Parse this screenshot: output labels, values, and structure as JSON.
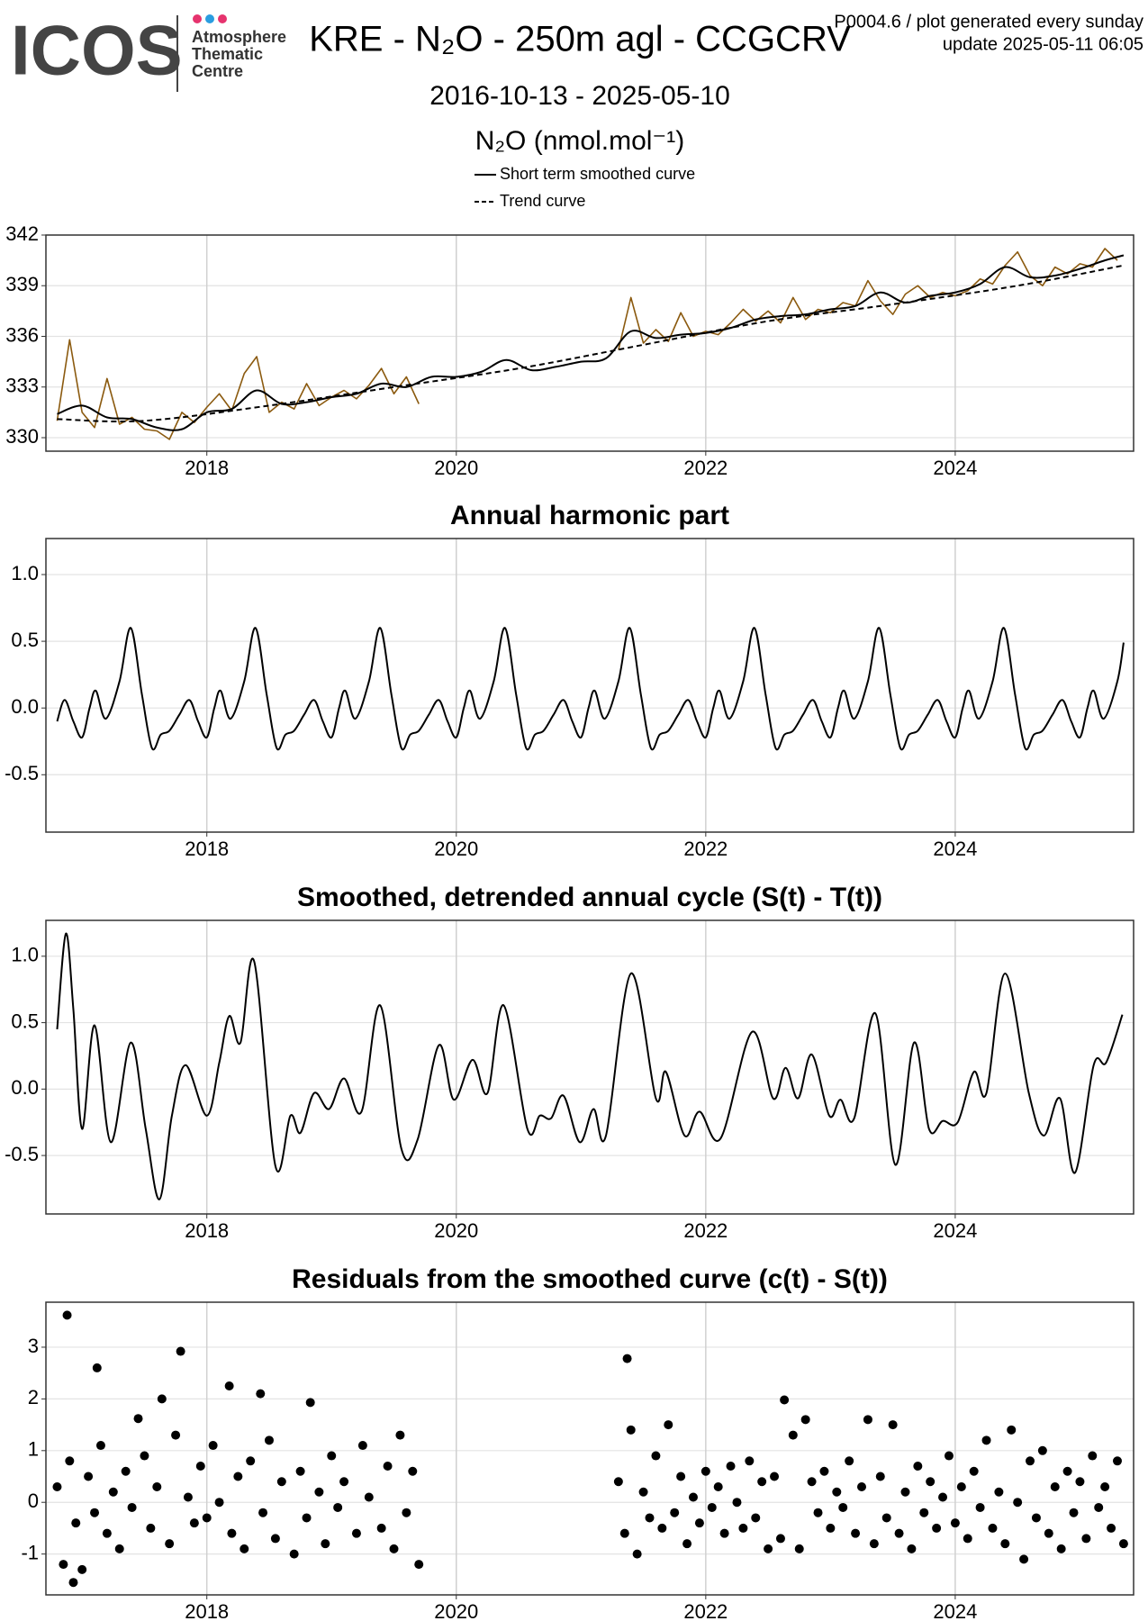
{
  "header": {
    "logo": "ICOS",
    "org_lines": [
      "Atmosphere",
      "Thematic",
      "Centre"
    ],
    "title": "KRE - N₂O - 250m agl - CCGCRV",
    "subtitle": "2016-10-13 - 2025-05-10",
    "notes": [
      "P0004.6 / plot generated every sunday",
      "update  2025-05-11 06:05"
    ]
  },
  "chart_data": [
    {
      "type": "line",
      "y_label": "N₂O (nmol.mol⁻¹)",
      "xlim": [
        2016.71,
        2025.43
      ],
      "xticks": [
        2018,
        2020,
        2022,
        2024
      ],
      "ylim": [
        329.2,
        342
      ],
      "yticks": [
        330,
        333,
        336,
        339,
        342
      ],
      "grid": true,
      "series": [
        {
          "color": "#8b5a0f",
          "style": "solid",
          "x": [
            2016.8,
            2016.9,
            2017.0,
            2017.1,
            2017.2,
            2017.3,
            2017.4,
            2017.5,
            2017.6,
            2017.7,
            2017.8,
            2017.9,
            2018.0,
            2018.1,
            2018.2,
            2018.3,
            2018.4,
            2018.5,
            2018.6,
            2018.7,
            2018.8,
            2018.9,
            2019.0,
            2019.1,
            2019.2,
            2019.3,
            2019.4,
            2019.5,
            2019.6,
            2019.7,
            2020.5,
            2021.3,
            2021.4,
            2021.5,
            2021.6,
            2021.7,
            2021.8,
            2021.9,
            2022.0,
            2022.1,
            2022.2,
            2022.3,
            2022.4,
            2022.5,
            2022.6,
            2022.7,
            2022.8,
            2022.9,
            2023.0,
            2023.1,
            2023.2,
            2023.3,
            2023.4,
            2023.5,
            2023.6,
            2023.7,
            2023.8,
            2023.9,
            2024.0,
            2024.1,
            2024.2,
            2024.3,
            2024.4,
            2024.5,
            2024.6,
            2024.7,
            2024.8,
            2024.9,
            2025.0,
            2025.1,
            2025.2,
            2025.3
          ],
          "values": [
            331.0,
            335.8,
            331.5,
            330.6,
            333.5,
            330.8,
            331.2,
            330.5,
            330.4,
            329.9,
            331.5,
            330.9,
            331.8,
            332.6,
            331.6,
            333.8,
            334.8,
            331.5,
            332.1,
            331.7,
            333.2,
            331.9,
            332.4,
            332.8,
            332.3,
            333.1,
            334.1,
            332.6,
            333.6,
            332.0,
            null,
            335.2,
            338.3,
            335.6,
            336.4,
            335.7,
            337.4,
            336.0,
            336.3,
            336.1,
            336.8,
            337.6,
            336.9,
            337.5,
            336.8,
            338.3,
            337.0,
            337.6,
            337.4,
            338.0,
            337.8,
            339.3,
            338.1,
            337.3,
            338.5,
            339.0,
            338.3,
            338.6,
            338.4,
            338.7,
            339.4,
            339.1,
            340.2,
            341.0,
            339.6,
            339.0,
            340.1,
            339.7,
            340.3,
            340.1,
            341.2,
            340.5
          ]
        },
        {
          "name": "Short term smoothed curve",
          "color": "#000000",
          "style": "solid",
          "x": [
            2016.8,
            2017.0,
            2017.2,
            2017.4,
            2017.6,
            2017.8,
            2018.0,
            2018.2,
            2018.4,
            2018.6,
            2018.8,
            2019.0,
            2019.2,
            2019.4,
            2019.6,
            2019.8,
            2020.0,
            2020.2,
            2020.4,
            2020.6,
            2020.8,
            2021.0,
            2021.2,
            2021.4,
            2021.6,
            2021.8,
            2022.0,
            2022.2,
            2022.4,
            2022.6,
            2022.8,
            2023.0,
            2023.2,
            2023.4,
            2023.6,
            2023.8,
            2024.0,
            2024.2,
            2024.4,
            2024.6,
            2024.8,
            2025.0,
            2025.2,
            2025.35
          ],
          "values": [
            331.4,
            331.9,
            331.2,
            331.1,
            330.6,
            330.5,
            331.5,
            331.7,
            332.8,
            332.0,
            332.1,
            332.4,
            332.6,
            333.2,
            333.0,
            333.6,
            333.6,
            333.9,
            334.6,
            334.0,
            334.2,
            334.5,
            334.7,
            336.3,
            335.9,
            336.1,
            336.2,
            336.5,
            337.0,
            337.2,
            337.3,
            337.6,
            337.8,
            338.6,
            338.0,
            338.4,
            338.6,
            339.1,
            340.1,
            339.5,
            339.6,
            340.0,
            340.5,
            340.8
          ]
        },
        {
          "name": "Trend curve",
          "color": "#000000",
          "style": "dashed",
          "x": [
            2016.8,
            2017.5,
            2018.5,
            2019.5,
            2020.5,
            2021.5,
            2022.5,
            2023.5,
            2024.5,
            2025.35
          ],
          "values": [
            331.1,
            331.0,
            331.9,
            333.0,
            334.1,
            335.5,
            336.9,
            337.9,
            339.0,
            340.2
          ]
        }
      ]
    },
    {
      "type": "line",
      "title": "Annual harmonic part",
      "xlim": [
        2016.71,
        2025.43
      ],
      "xticks": [
        2018,
        2020,
        2022,
        2024
      ],
      "ylim": [
        -0.93,
        1.27
      ],
      "yticks": [
        -0.5,
        {
          "value": 0,
          "label": "0.0"
        },
        0.5,
        {
          "value": 1,
          "label": "1.0"
        }
      ],
      "grid": true,
      "series": [
        {
          "color": "#000000",
          "style": "solid",
          "x": [
            2016.8,
            2016.86,
            2016.93,
            2017.0,
            2017.06,
            2017.11,
            2017.19,
            2017.3,
            2017.39,
            2017.48,
            2017.56,
            2017.63,
            2017.7,
            2017.78,
            2017.86,
            2017.93,
            2018.0,
            2018.06,
            2018.11,
            2018.19,
            2018.3,
            2018.39,
            2018.48,
            2018.56,
            2018.63,
            2018.7,
            2018.78,
            2018.86,
            2018.93,
            2019.0,
            2019.06,
            2019.11,
            2019.19,
            2019.3,
            2019.39,
            2019.48,
            2019.56,
            2019.63,
            2019.7,
            2019.78,
            2019.86,
            2019.93,
            2020.0,
            2020.06,
            2020.11,
            2020.19,
            2020.3,
            2020.39,
            2020.48,
            2020.56,
            2020.63,
            2020.7,
            2020.78,
            2020.86,
            2020.93,
            2021.0,
            2021.06,
            2021.11,
            2021.19,
            2021.3,
            2021.39,
            2021.48,
            2021.56,
            2021.63,
            2021.7,
            2021.78,
            2021.86,
            2021.93,
            2022.0,
            2022.06,
            2022.11,
            2022.19,
            2022.3,
            2022.39,
            2022.48,
            2022.56,
            2022.63,
            2022.7,
            2022.78,
            2022.86,
            2022.93,
            2023.0,
            2023.06,
            2023.11,
            2023.19,
            2023.3,
            2023.39,
            2023.48,
            2023.56,
            2023.63,
            2023.7,
            2023.78,
            2023.86,
            2023.93,
            2024.0,
            2024.06,
            2024.11,
            2024.19,
            2024.3,
            2024.39,
            2024.48,
            2024.56,
            2024.63,
            2024.7,
            2024.78,
            2024.86,
            2024.93,
            2025.0,
            2025.06,
            2025.11,
            2025.19,
            2025.3,
            2025.35
          ],
          "values": [
            -0.1,
            0.06,
            -0.1,
            -0.22,
            0.0,
            0.13,
            -0.08,
            0.2,
            0.6,
            0.1,
            -0.3,
            -0.2,
            -0.17,
            -0.05,
            0.06,
            -0.1,
            -0.22,
            0.0,
            0.13,
            -0.08,
            0.2,
            0.6,
            0.1,
            -0.3,
            -0.2,
            -0.17,
            -0.05,
            0.06,
            -0.1,
            -0.22,
            0.0,
            0.13,
            -0.08,
            0.2,
            0.6,
            0.1,
            -0.3,
            -0.2,
            -0.17,
            -0.05,
            0.06,
            -0.1,
            -0.22,
            0.0,
            0.13,
            -0.08,
            0.2,
            0.6,
            0.1,
            -0.3,
            -0.2,
            -0.17,
            -0.05,
            0.06,
            -0.1,
            -0.22,
            0.0,
            0.13,
            -0.08,
            0.2,
            0.6,
            0.1,
            -0.3,
            -0.2,
            -0.17,
            -0.05,
            0.06,
            -0.1,
            -0.22,
            0.0,
            0.13,
            -0.08,
            0.2,
            0.6,
            0.1,
            -0.3,
            -0.2,
            -0.17,
            -0.05,
            0.06,
            -0.1,
            -0.22,
            0.0,
            0.13,
            -0.08,
            0.2,
            0.6,
            0.1,
            -0.3,
            -0.2,
            -0.17,
            -0.05,
            0.06,
            -0.1,
            -0.22,
            0.0,
            0.13,
            -0.08,
            0.2,
            0.6,
            0.1,
            -0.3,
            -0.2,
            -0.17,
            -0.05,
            0.06,
            -0.1,
            -0.22,
            0.0,
            0.13,
            -0.08,
            0.2,
            0.49
          ]
        }
      ]
    },
    {
      "type": "line",
      "title": "Smoothed, detrended annual cycle (S(t) - T(t))",
      "xlim": [
        2016.71,
        2025.43
      ],
      "xticks": [
        2018,
        2020,
        2022,
        2024
      ],
      "ylim": [
        -0.94,
        1.27
      ],
      "yticks": [
        -0.5,
        {
          "value": 0,
          "label": "0.0"
        },
        0.5,
        {
          "value": 1,
          "label": "1.0"
        }
      ],
      "grid": true,
      "series": [
        {
          "color": "#000000",
          "style": "solid",
          "x": [
            2016.8,
            2016.87,
            2016.93,
            2017.0,
            2017.1,
            2017.23,
            2017.39,
            2017.51,
            2017.62,
            2017.72,
            2017.83,
            2018.0,
            2018.1,
            2018.18,
            2018.27,
            2018.38,
            2018.55,
            2018.67,
            2018.75,
            2018.86,
            2018.98,
            2019.1,
            2019.24,
            2019.39,
            2019.56,
            2019.69,
            2019.86,
            2019.98,
            2020.13,
            2020.25,
            2020.38,
            2020.57,
            2020.67,
            2020.76,
            2020.86,
            2020.99,
            2021.1,
            2021.2,
            2021.4,
            2021.6,
            2021.68,
            2021.83,
            2021.95,
            2022.12,
            2022.37,
            2022.54,
            2022.64,
            2022.74,
            2022.85,
            2022.99,
            2023.08,
            2023.19,
            2023.36,
            2023.52,
            2023.67,
            2023.79,
            2023.9,
            2024.02,
            2024.15,
            2024.25,
            2024.4,
            2024.59,
            2024.71,
            2024.84,
            2024.96,
            2025.11,
            2025.21,
            2025.34
          ],
          "values": [
            0.45,
            1.17,
            0.6,
            -0.3,
            0.48,
            -0.4,
            0.35,
            -0.3,
            -0.83,
            -0.2,
            0.18,
            -0.2,
            0.2,
            0.55,
            0.35,
            0.96,
            -0.58,
            -0.2,
            -0.33,
            -0.03,
            -0.15,
            0.08,
            -0.17,
            0.63,
            -0.45,
            -0.38,
            0.33,
            -0.08,
            0.22,
            -0.03,
            0.63,
            -0.3,
            -0.2,
            -0.22,
            -0.05,
            -0.4,
            -0.15,
            -0.35,
            0.87,
            -0.07,
            0.13,
            -0.35,
            -0.17,
            -0.37,
            0.43,
            -0.07,
            0.16,
            -0.07,
            0.26,
            -0.2,
            -0.08,
            -0.22,
            0.57,
            -0.57,
            0.35,
            -0.3,
            -0.24,
            -0.25,
            0.13,
            -0.03,
            0.87,
            -0.03,
            -0.35,
            -0.07,
            -0.63,
            0.18,
            0.2,
            0.56
          ]
        }
      ]
    },
    {
      "type": "scatter",
      "title": "Residuals from the smoothed curve (c(t) - S(t))",
      "xlim": [
        2016.71,
        2025.43
      ],
      "xticks": [
        2018,
        2020,
        2022,
        2024
      ],
      "ylim": [
        -1.79,
        3.87
      ],
      "yticks": [
        -1,
        0,
        1,
        2,
        3
      ],
      "grid": true,
      "color": "#000000",
      "x": [
        2016.8,
        2016.85,
        2016.9,
        2016.95,
        2017.0,
        2017.05,
        2017.1,
        2017.15,
        2017.2,
        2017.25,
        2017.3,
        2017.35,
        2017.4,
        2017.5,
        2017.55,
        2017.6,
        2017.7,
        2017.75,
        2017.85,
        2017.9,
        2017.95,
        2018.0,
        2018.05,
        2018.1,
        2018.2,
        2018.25,
        2018.3,
        2018.35,
        2018.45,
        2018.5,
        2018.55,
        2018.6,
        2018.7,
        2018.75,
        2018.8,
        2018.9,
        2018.95,
        2019.0,
        2019.05,
        2019.1,
        2019.2,
        2019.25,
        2019.3,
        2019.4,
        2019.45,
        2019.5,
        2019.55,
        2019.6,
        2019.65,
        2019.7,
        2016.88,
        2017.12,
        2017.79,
        2017.64,
        2018.18,
        2018.43,
        2018.83,
        2016.93,
        2017.45,
        2021.37,
        2022.63,
        2022.8,
        2021.3,
        2021.35,
        2021.4,
        2021.45,
        2021.5,
        2021.55,
        2021.6,
        2021.65,
        2021.7,
        2021.75,
        2021.8,
        2021.85,
        2021.9,
        2021.95,
        2022.0,
        2022.05,
        2022.1,
        2022.15,
        2022.2,
        2022.25,
        2022.3,
        2022.35,
        2022.4,
        2022.45,
        2022.5,
        2022.55,
        2022.6,
        2022.7,
        2022.75,
        2022.85,
        2022.9,
        2022.95,
        2023.0,
        2023.05,
        2023.1,
        2023.15,
        2023.2,
        2023.25,
        2023.3,
        2023.35,
        2023.4,
        2023.45,
        2023.5,
        2023.55,
        2023.6,
        2023.65,
        2023.7,
        2023.75,
        2023.8,
        2023.85,
        2023.9,
        2023.95,
        2024.0,
        2024.05,
        2024.1,
        2024.15,
        2024.2,
        2024.25,
        2024.3,
        2024.35,
        2024.4,
        2024.45,
        2024.5,
        2024.55,
        2024.6,
        2024.65,
        2024.7,
        2024.75,
        2024.8,
        2024.85,
        2024.9,
        2024.95,
        2025.0,
        2025.05,
        2025.1,
        2025.15,
        2025.2,
        2025.25,
        2025.3,
        2025.35
      ],
      "values": [
        0.3,
        -1.2,
        0.8,
        -0.4,
        -1.3,
        0.5,
        -0.2,
        1.1,
        -0.6,
        0.2,
        -0.9,
        0.6,
        -0.1,
        0.9,
        -0.5,
        0.3,
        -0.8,
        1.3,
        0.1,
        -0.4,
        0.7,
        -0.3,
        1.1,
        0.0,
        -0.6,
        0.5,
        -0.9,
        0.8,
        -0.2,
        1.2,
        -0.7,
        0.4,
        -1.0,
        0.6,
        -0.3,
        0.2,
        -0.8,
        0.9,
        -0.1,
        0.4,
        -0.6,
        1.1,
        0.1,
        -0.5,
        0.7,
        -0.9,
        1.3,
        -0.2,
        0.6,
        -1.2,
        3.62,
        2.6,
        2.92,
        2.0,
        2.25,
        2.1,
        1.93,
        -1.55,
        1.62,
        2.78,
        1.98,
        1.6,
        0.4,
        -0.6,
        1.4,
        -1.0,
        0.2,
        -0.3,
        0.9,
        -0.5,
        1.5,
        -0.2,
        0.5,
        -0.8,
        0.1,
        -0.4,
        0.6,
        -0.1,
        0.3,
        -0.6,
        0.7,
        0.0,
        -0.5,
        0.8,
        -0.3,
        0.4,
        -0.9,
        0.5,
        -0.7,
        1.3,
        -0.9,
        0.4,
        -0.2,
        0.6,
        -0.5,
        0.2,
        -0.1,
        0.8,
        -0.6,
        0.3,
        1.6,
        -0.8,
        0.5,
        -0.3,
        1.5,
        -0.6,
        0.2,
        -0.9,
        0.7,
        -0.2,
        0.4,
        -0.5,
        0.1,
        0.9,
        -0.4,
        0.3,
        -0.7,
        0.6,
        -0.1,
        1.2,
        -0.5,
        0.2,
        -0.8,
        1.4,
        0.0,
        -1.1,
        0.8,
        -0.3,
        1.0,
        -0.6,
        0.3,
        -0.9,
        0.6,
        -0.2,
        0.4,
        -0.7,
        0.9,
        -0.1,
        0.3,
        -0.5,
        0.8,
        -0.8
      ]
    }
  ]
}
